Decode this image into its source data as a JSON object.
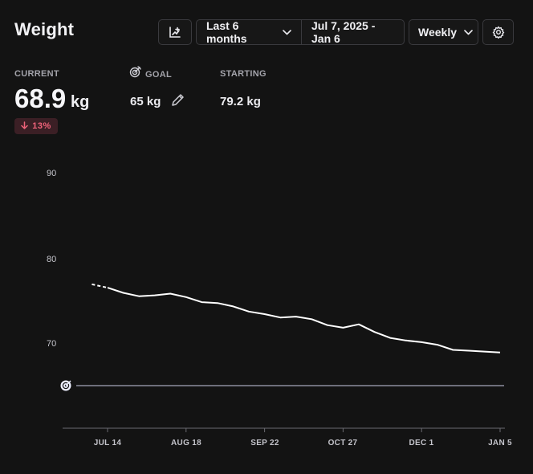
{
  "header": {
    "title": "Weight",
    "range_label": "Last 6 months",
    "date_range": "Jul 7, 2025 - Jan 6",
    "interval_label": "Weekly"
  },
  "stats": {
    "current_label": "CURRENT",
    "current_value": "68.9",
    "current_unit": "kg",
    "change_badge": "13%",
    "goal_label": "GOAL",
    "goal_value": "65 kg",
    "starting_label": "STARTING",
    "starting_value": "79.2 kg"
  },
  "icons": {
    "add_chart": "chart-add-icon",
    "dropdown": "chevron-down-icon",
    "settings": "gear-icon",
    "goal": "target-icon",
    "edit": "pencil-icon",
    "change": "arrow-down-icon"
  },
  "colors": {
    "background": "#131313",
    "line": "#ffffff",
    "goal_line": "#c9cbe3",
    "badge_text": "#f0637a",
    "badge_bg": "#3b1f25"
  },
  "chart_data": {
    "type": "line",
    "ylim": [
      60,
      92
    ],
    "yticks": [
      "90",
      "80",
      "70"
    ],
    "xticks": [
      "JUL 14",
      "AUG 18",
      "SEP 22",
      "OCT 27",
      "DEC 1",
      "JAN 5"
    ],
    "goal": 65,
    "series": [
      {
        "dashed_start": [
          "2025-07-07",
          "2025-07-14"
        ],
        "x": [
          "2025-07-07",
          "2025-07-14",
          "2025-07-21",
          "2025-07-28",
          "2025-08-04",
          "2025-08-11",
          "2025-08-18",
          "2025-08-25",
          "2025-09-01",
          "2025-09-08",
          "2025-09-15",
          "2025-09-22",
          "2025-09-29",
          "2025-10-06",
          "2025-10-13",
          "2025-10-20",
          "2025-10-27",
          "2025-11-03",
          "2025-11-10",
          "2025-11-17",
          "2025-11-24",
          "2025-12-01",
          "2025-12-08",
          "2025-12-15",
          "2025-12-22",
          "2025-12-29",
          "2026-01-05"
        ],
        "y": [
          76.9,
          76.5,
          75.9,
          75.5,
          75.6,
          75.8,
          75.4,
          74.8,
          74.7,
          74.3,
          73.7,
          73.4,
          73.0,
          73.1,
          72.8,
          72.1,
          71.8,
          72.2,
          71.3,
          70.6,
          70.3,
          70.1,
          69.8,
          69.2,
          69.1,
          69.0,
          68.9
        ]
      }
    ]
  }
}
